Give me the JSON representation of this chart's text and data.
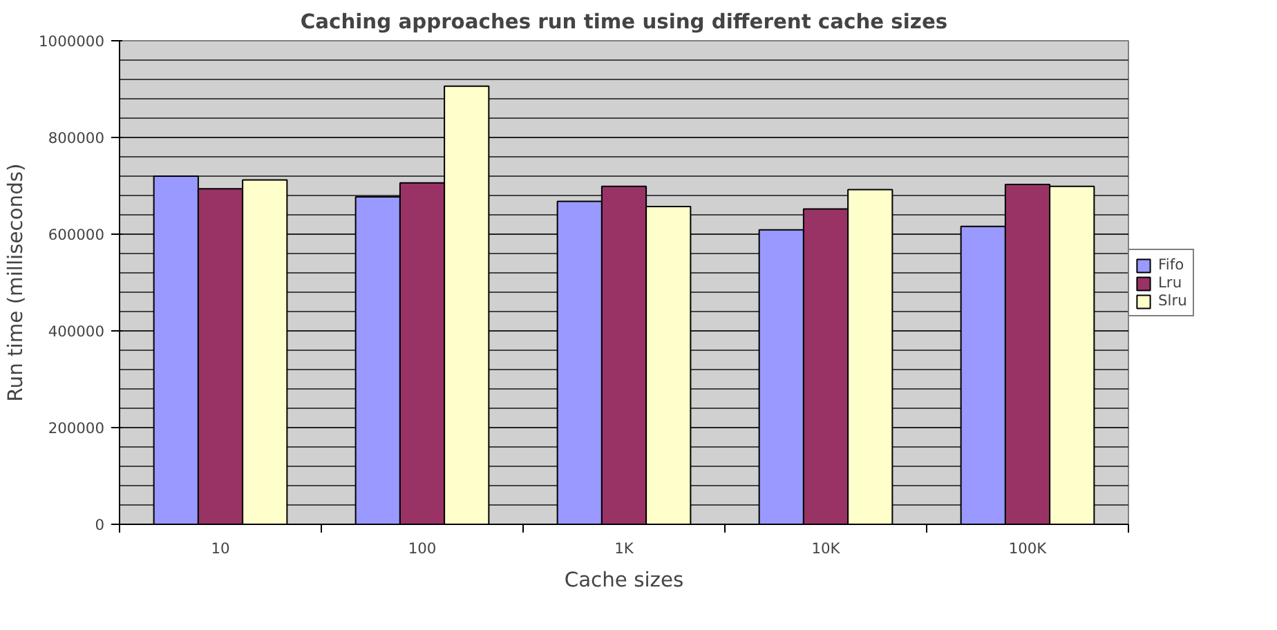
{
  "chart_data": {
    "type": "bar",
    "title": "Caching approaches run time using different cache sizes",
    "xlabel": "Cache sizes",
    "ylabel": "Run time (milliseconds)",
    "categories": [
      "10",
      "100",
      "1K",
      "10K",
      "100K"
    ],
    "series": [
      {
        "name": "Fifo",
        "color": "#9999ff",
        "values": [
          720000,
          677000,
          668000,
          609000,
          616000
        ]
      },
      {
        "name": "Lru",
        "color": "#993366",
        "values": [
          694000,
          706000,
          699000,
          652000,
          703000
        ]
      },
      {
        "name": "Slru",
        "color": "#ffffcc",
        "values": [
          712000,
          906000,
          657000,
          692000,
          699000
        ]
      }
    ],
    "ylim": [
      0,
      1000000
    ],
    "yticks": [
      0,
      200000,
      400000,
      600000,
      800000,
      1000000
    ],
    "grid": "y",
    "legend": "right"
  }
}
